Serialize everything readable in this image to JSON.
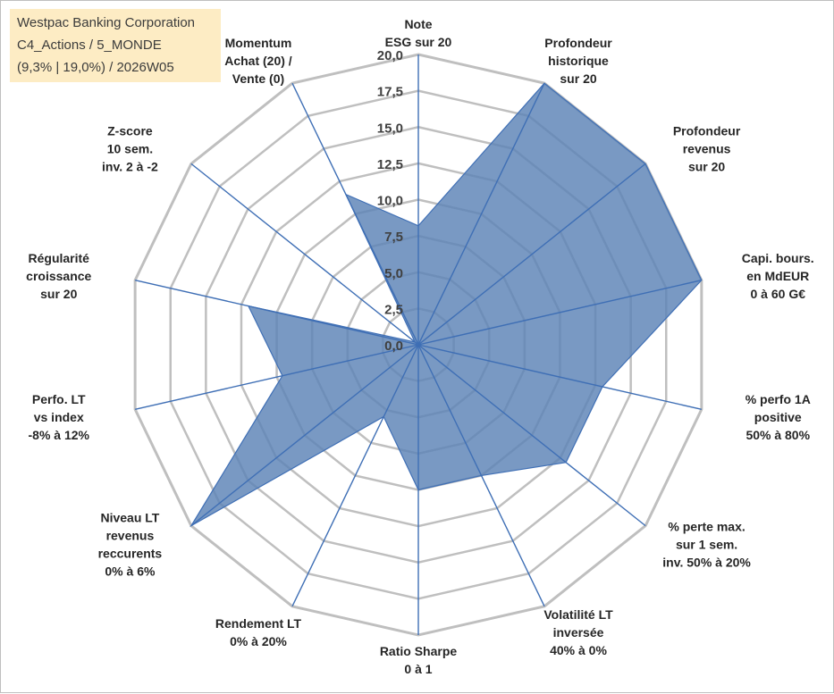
{
  "header": {
    "company": "Westpac Banking Corporation",
    "category": "C4_Actions / 5_MONDE",
    "stats": "(9,3% | 19,0%) / 2026W05"
  },
  "chart_data": {
    "type": "radar",
    "range": [
      0,
      20
    ],
    "ticks": [
      "0,0",
      "2,5",
      "5,0",
      "7,5",
      "10,0",
      "12,5",
      "15,0",
      "17,5",
      "20,0"
    ],
    "axes": [
      {
        "label": [
          "Note",
          "ESG sur 20"
        ],
        "value": 8.2
      },
      {
        "label": [
          "Profondeur",
          "historique",
          "sur 20"
        ],
        "value": 20.0
      },
      {
        "label": [
          "Profondeur",
          "revenus",
          "sur 20"
        ],
        "value": 20.0
      },
      {
        "label": [
          "Capi. bours.",
          "en MdEUR",
          "0 à 60 G€"
        ],
        "value": 20.0
      },
      {
        "label": [
          "% perfo 1A",
          "positive",
          "50% à 80%"
        ],
        "value": 13.0
      },
      {
        "label": [
          "% perte max.",
          "sur 1 sem.",
          "inv. 50% à 20%"
        ],
        "value": 13.0
      },
      {
        "label": [
          "Volatilité LT",
          "inversée",
          "40% à 0%"
        ],
        "value": 10.0
      },
      {
        "label": [
          "Ratio Sharpe",
          "0 à 1"
        ],
        "value": 10.0
      },
      {
        "label": [
          "Rendement LT",
          "0% à 20%"
        ],
        "value": 5.5
      },
      {
        "label": [
          "Niveau LT",
          "revenus",
          "reccurents",
          "0% à 6%"
        ],
        "value": 20.0
      },
      {
        "label": [
          "Perfo. LT",
          "vs index",
          "-8% à 12%"
        ],
        "value": 9.6
      },
      {
        "label": [
          "Régularité",
          "croissance",
          "sur 20"
        ],
        "value": 12.0
      },
      {
        "label": [
          "Z-score",
          "10 sem.",
          "inv. 2 à -2"
        ],
        "value": 0.3
      },
      {
        "label": [
          "Momentum",
          "Achat (20) /",
          "Vente (0)"
        ],
        "value": 11.5
      }
    ],
    "colors": {
      "fill": "#5b82b6",
      "stroke": "#3f6fb5",
      "grid": "#bfbfbf"
    }
  }
}
